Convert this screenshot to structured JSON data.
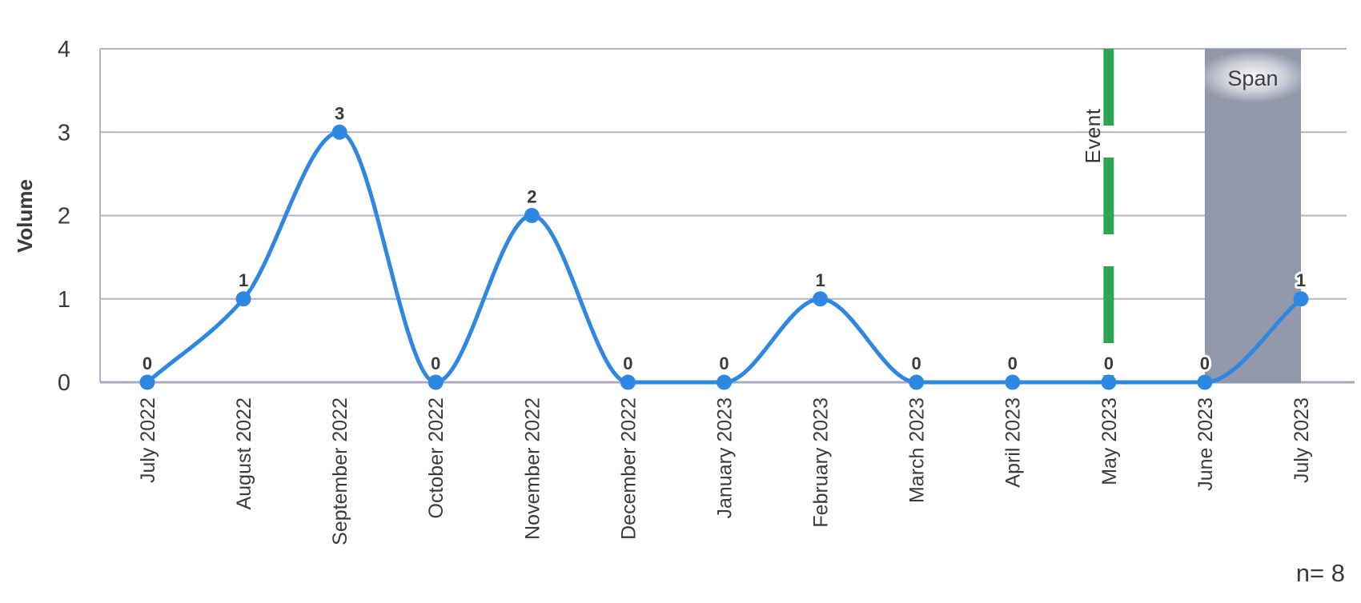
{
  "chart_data": {
    "type": "line",
    "title": "",
    "xlabel": "",
    "ylabel": "Volume",
    "categories": [
      "July 2022",
      "August 2022",
      "September 2022",
      "October 2022",
      "November 2022",
      "December 2022",
      "January 2023",
      "February 2023",
      "March 2023",
      "April 2023",
      "May 2023",
      "June 2023",
      "July 2023"
    ],
    "series": [
      {
        "name": "Volume",
        "values": [
          0,
          1,
          3,
          0,
          2,
          0,
          0,
          1,
          0,
          0,
          0,
          0,
          1
        ],
        "color": "#2E87E0"
      }
    ],
    "ylim": [
      0,
      4
    ],
    "yticks": [
      0,
      1,
      2,
      3,
      4
    ],
    "grid": "horizontal",
    "legend_position": "none",
    "line_style": "smooth",
    "markers": "circle",
    "data_labels_shown": true,
    "annotations": {
      "event_line": {
        "label": "Event",
        "category": "May 2023",
        "color": "#2FA453",
        "style": "dashed-vertical"
      },
      "span_region": {
        "label": "Span",
        "from_category": "June 2023",
        "to_category": "July 2023",
        "color": "#9298A9"
      },
      "sample_size": "n= 8"
    }
  },
  "colors": {
    "line": "#2E87E0",
    "grid": "#B1B2C6",
    "axis": "#A9AABF",
    "event_green": "#2FA453",
    "span_gray": "#9298A9",
    "text": "#3B3B3B",
    "span_label_text": "#3F3F46"
  }
}
